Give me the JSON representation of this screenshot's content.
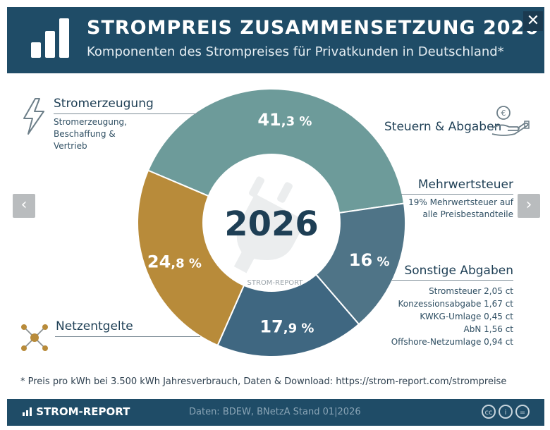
{
  "header": {
    "title": "STROMPREIS ZUSAMMENSETZUNG 2026",
    "subtitle": "Komponenten des Strompreises für Privatkunden in Deutschland*",
    "close_label": "✕",
    "logo_icon": "bar-chart-logo-icon"
  },
  "nav": {
    "prev_label": "‹",
    "next_label": "›"
  },
  "chart_data": {
    "type": "pie",
    "center_label": "2026",
    "watermark": "STROM-REPORT",
    "slices": [
      {
        "name": "Stromerzeugung",
        "value": 41.3,
        "label_main": "41",
        "label_dec": ",3 %",
        "color": "#6d9b9a"
      },
      {
        "name": "Mehrwertsteuer",
        "value": 16.0,
        "label_main": "16",
        "label_dec": " %",
        "color": "#4f7487"
      },
      {
        "name": "Sonstige Abgaben",
        "value": 17.9,
        "label_main": "17",
        "label_dec": ",9 %",
        "color": "#3f6781"
      },
      {
        "name": "Netzentgelte",
        "value": 24.8,
        "label_main": "24",
        "label_dec": ",8 %",
        "color": "#b88b3a"
      }
    ]
  },
  "labels": {
    "stromerzeugung": {
      "title": "Stromerzeugung",
      "lines": [
        "Stromerzeugung,",
        "Beschaffung &",
        "Vertrieb"
      ],
      "icon": "lightning-icon"
    },
    "steuern": {
      "title": "Steuern & Abgaben",
      "icon": "hand-coin-icon"
    },
    "mehrwertsteuer": {
      "title": "Mehrwertsteuer",
      "lines": [
        "19% Mehrwertsteuer auf",
        "alle Preisbestandteile"
      ]
    },
    "sonstige": {
      "title": "Sonstige Abgaben",
      "lines": [
        "Stromsteuer 2,05 ct",
        "Konzessionsabgabe 1,67 ct",
        "KWKG-Umlage 0,45 ct",
        "AbN 1,56 ct",
        "Offshore-Netzumlage 0,94 ct"
      ]
    },
    "netzentgelte": {
      "title": "Netzentgelte",
      "icon": "network-icon"
    }
  },
  "footnote": "* Preis pro kWh bei 3.500 kWh Jahresverbrauch, Daten & Download: https://strom-report.com/strompreise",
  "footer": {
    "brand": "STROM-REPORT",
    "source": "Daten: BDEW, BNetzA    Stand 01|2026",
    "license_icons": [
      "cc-icon",
      "attribution-icon",
      "no-derivatives-icon"
    ],
    "license_glyphs": [
      "cc",
      "i",
      "="
    ]
  },
  "colors": {
    "header_bg": "#1f4c67",
    "text": "#1e3f55"
  }
}
